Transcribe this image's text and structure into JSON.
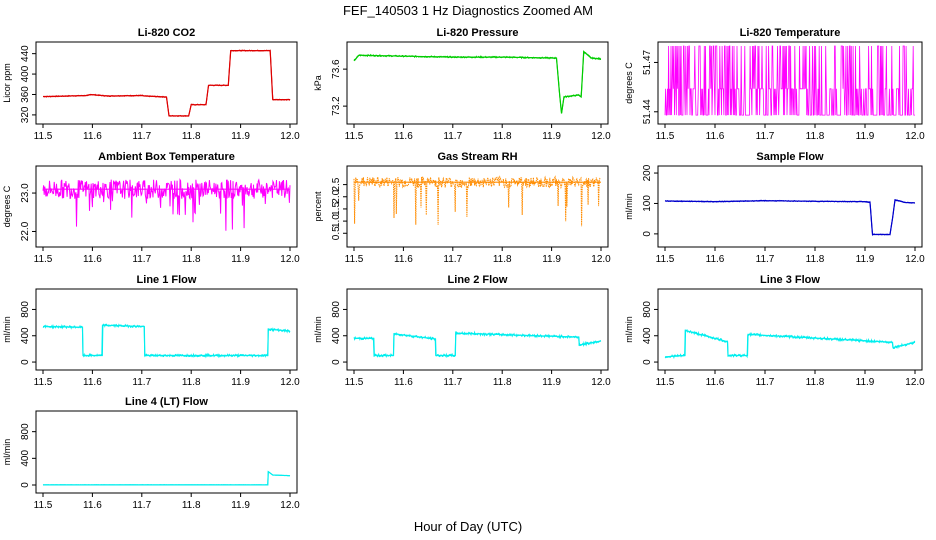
{
  "figure": {
    "title": "FEF_140503  1 Hz Diagnostics Zoomed AM",
    "xlabel": "Hour of Day (UTC)"
  },
  "chart_data": [
    {
      "type": "line",
      "title": "Li-820 CO2",
      "ylabel": "Licor ppm",
      "color": "#dd0000",
      "xlim": [
        11.5,
        12.0
      ],
      "ylim": [
        310,
        455
      ],
      "xticks": [
        "11.5",
        "11.6",
        "11.7",
        "11.8",
        "11.9",
        "12.0"
      ],
      "yticks": [
        {
          "v": 320,
          "t": "320"
        },
        {
          "v": 360,
          "t": "360"
        },
        {
          "v": 400,
          "t": "400"
        },
        {
          "v": 440,
          "t": "440"
        }
      ],
      "step": true,
      "noise": 1.0,
      "x": [
        11.5,
        11.51,
        11.59,
        11.596,
        11.63,
        11.7,
        11.705,
        11.75,
        11.755,
        11.795,
        11.8,
        11.83,
        11.835,
        11.875,
        11.88,
        11.96,
        11.965,
        12.0
      ],
      "y": [
        356,
        356,
        358,
        360,
        357,
        358,
        357,
        355,
        318,
        318,
        340,
        340,
        378,
        378,
        446,
        446,
        350,
        350
      ]
    },
    {
      "type": "line",
      "title": "Li-820 Pressure",
      "ylabel": "kPa",
      "color": "#00cc00",
      "xlim": [
        11.5,
        12.0
      ],
      "ylim": [
        73.05,
        73.85
      ],
      "xticks": [
        "11.5",
        "11.6",
        "11.7",
        "11.8",
        "11.9",
        "12.0"
      ],
      "yticks": [
        {
          "v": 73.2,
          "t": "73.2"
        },
        {
          "v": 73.6,
          "t": "73.6"
        }
      ],
      "step": false,
      "noise": 0.008,
      "x": [
        11.5,
        11.51,
        11.6,
        11.7,
        11.8,
        11.9,
        11.91,
        11.915,
        11.92,
        11.925,
        11.955,
        11.96,
        11.965,
        11.98,
        12.0
      ],
      "y": [
        73.69,
        73.75,
        73.74,
        73.73,
        73.73,
        73.72,
        73.72,
        73.4,
        73.12,
        73.3,
        73.32,
        73.3,
        73.79,
        73.72,
        73.71
      ]
    },
    {
      "type": "line",
      "title": "Li-820 Temperature",
      "ylabel": "degrees C",
      "color": "#ff00ff",
      "xlim": [
        11.5,
        12.0
      ],
      "ylim": [
        51.435,
        51.48
      ],
      "xticks": [
        "11.5",
        "11.6",
        "11.7",
        "11.8",
        "11.9",
        "12.0"
      ],
      "yticks": [
        {
          "v": 51.44,
          "t": "51.44"
        },
        {
          "v": 51.47,
          "t": "51.47"
        }
      ],
      "step": false,
      "noise": 0,
      "binary": [
        51.438,
        51.454,
        51.48
      ],
      "x": [
        11.5,
        12.0
      ],
      "y": [
        51.454,
        51.454
      ]
    },
    {
      "type": "line",
      "title": "Ambient Box Temperature",
      "ylabel": "degrees C",
      "color": "#ff00ff",
      "xlim": [
        11.5,
        12.0
      ],
      "ylim": [
        21.7,
        23.6
      ],
      "xticks": [
        "11.5",
        "11.6",
        "11.7",
        "11.8",
        "11.9",
        "12.0"
      ],
      "yticks": [
        {
          "v": 22.0,
          "t": "22.0"
        },
        {
          "v": 23.0,
          "t": "23.0"
        }
      ],
      "step": false,
      "noise": 0.25,
      "spikes": -0.9,
      "x": [
        11.5,
        12.0
      ],
      "y": [
        23.1,
        23.1
      ]
    },
    {
      "type": "line",
      "title": "Gas Stream RH",
      "ylabel": "percent",
      "color": "#ff8c00",
      "xlim": [
        11.5,
        12.0
      ],
      "ylim": [
        0.1,
        3.1
      ],
      "xticks": [
        "11.5",
        "11.6",
        "11.7",
        "11.8",
        "11.9",
        "12.0"
      ],
      "yticks": [
        {
          "v": 0.5,
          "t": "0.5"
        },
        {
          "v": 1.0,
          "t": "1.0"
        },
        {
          "v": 1.5,
          "t": "1.5"
        },
        {
          "v": 2.0,
          "t": "2.0"
        },
        {
          "v": 2.5,
          "t": "2.5"
        }
      ],
      "step": false,
      "noise": 0.22,
      "spikes": -1.8,
      "dotted": true,
      "x": [
        11.5,
        12.0
      ],
      "y": [
        2.6,
        2.6
      ]
    },
    {
      "type": "line",
      "title": "Sample Flow",
      "ylabel": "ml/min",
      "color": "#0000cc",
      "xlim": [
        11.5,
        12.0
      ],
      "ylim": [
        -30,
        210
      ],
      "xticks": [
        "11.5",
        "11.6",
        "11.7",
        "11.8",
        "11.9",
        "12.0"
      ],
      "yticks": [
        {
          "v": 0,
          "t": "0"
        },
        {
          "v": 100,
          "t": "100"
        },
        {
          "v": 200,
          "t": "200"
        }
      ],
      "step": false,
      "noise": 1.5,
      "x": [
        11.5,
        11.6,
        11.7,
        11.8,
        11.9,
        11.91,
        11.915,
        11.95,
        11.955,
        11.96,
        11.98,
        12.0
      ],
      "y": [
        108,
        106,
        109,
        107,
        106,
        104,
        -2,
        -2,
        50,
        112,
        103,
        102
      ]
    },
    {
      "type": "line",
      "title": "Line 1 Flow",
      "ylabel": "ml/min",
      "color": "#00eeee",
      "xlim": [
        11.5,
        12.0
      ],
      "ylim": [
        -60,
        1050
      ],
      "xticks": [
        "11.5",
        "11.6",
        "11.7",
        "11.8",
        "11.9",
        "12.0"
      ],
      "yticks": [
        {
          "v": 0,
          "t": "0"
        },
        {
          "v": 400,
          "t": "400"
        },
        {
          "v": 800,
          "t": "800"
        }
      ],
      "step": true,
      "noise": 18,
      "x": [
        11.5,
        11.58,
        11.581,
        11.62,
        11.621,
        11.705,
        11.706,
        11.955,
        11.956,
        12.0
      ],
      "y": [
        540,
        530,
        100,
        100,
        560,
        540,
        100,
        100,
        500,
        470
      ]
    },
    {
      "type": "line",
      "title": "Line 2 Flow",
      "ylabel": "ml/min",
      "color": "#00eeee",
      "xlim": [
        11.5,
        12.0
      ],
      "ylim": [
        -60,
        1050
      ],
      "xticks": [
        "11.5",
        "11.6",
        "11.7",
        "11.8",
        "11.9",
        "12.0"
      ],
      "yticks": [
        {
          "v": 0,
          "t": "0"
        },
        {
          "v": 400,
          "t": "400"
        },
        {
          "v": 800,
          "t": "800"
        }
      ],
      "step": true,
      "noise": 20,
      "x": [
        11.5,
        11.54,
        11.541,
        11.58,
        11.581,
        11.665,
        11.666,
        11.705,
        11.706,
        11.955,
        11.956,
        12.0
      ],
      "y": [
        360,
        360,
        100,
        100,
        430,
        350,
        100,
        100,
        440,
        380,
        260,
        320
      ]
    },
    {
      "type": "line",
      "title": "Line 3 Flow",
      "ylabel": "ml/min",
      "color": "#00eeee",
      "xlim": [
        11.5,
        12.0
      ],
      "ylim": [
        -60,
        1050
      ],
      "xticks": [
        "11.5",
        "11.6",
        "11.7",
        "11.8",
        "11.9",
        "12.0"
      ],
      "yticks": [
        {
          "v": 0,
          "t": "0"
        },
        {
          "v": 400,
          "t": "400"
        },
        {
          "v": 800,
          "t": "800"
        }
      ],
      "step": true,
      "noise": 20,
      "x": [
        11.5,
        11.54,
        11.541,
        11.625,
        11.626,
        11.665,
        11.666,
        11.955,
        11.956,
        12.0
      ],
      "y": [
        80,
        100,
        480,
        310,
        100,
        100,
        420,
        300,
        220,
        300
      ]
    },
    {
      "type": "line",
      "title": "Line 4 (LT) Flow",
      "ylabel": "ml/min",
      "color": "#00eeee",
      "xlim": [
        11.5,
        12.0
      ],
      "ylim": [
        -60,
        1050
      ],
      "xticks": [
        "11.5",
        "11.6",
        "11.7",
        "11.8",
        "11.9",
        "12.0"
      ],
      "yticks": [
        {
          "v": 0,
          "t": "0"
        },
        {
          "v": 400,
          "t": "400"
        },
        {
          "v": 800,
          "t": "800"
        }
      ],
      "step": true,
      "noise": 2,
      "x": [
        11.5,
        11.955,
        11.956,
        11.965,
        12.0
      ],
      "y": [
        2,
        2,
        200,
        150,
        140
      ]
    }
  ]
}
